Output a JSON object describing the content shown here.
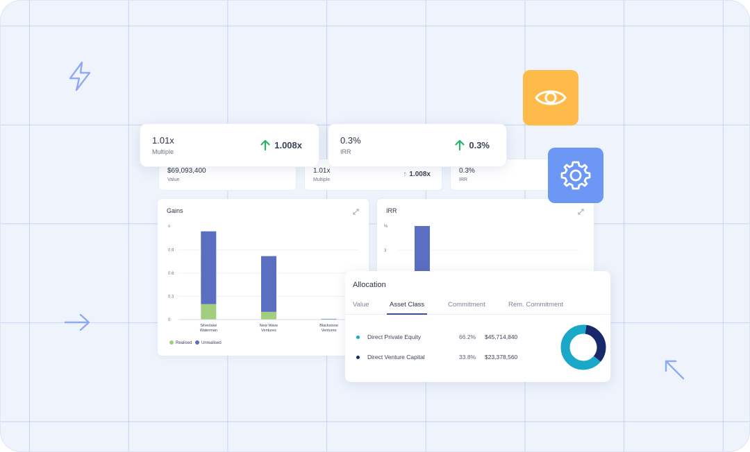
{
  "colors": {
    "background": "#eef3fc",
    "gain_up": "#2cb36b",
    "bar_unrealised": "#5b6fc2",
    "bar_realised": "#a1cf7e",
    "eye_tile": "#ffbb4a",
    "gear_tile": "#6d97f5",
    "donut_primary": "#1aa7c8",
    "donut_secondary": "#17296b"
  },
  "stat_cards": [
    {
      "value": "1.01x",
      "label": "Multiple",
      "delta": "1.008x",
      "icon": "arrow-up-icon"
    },
    {
      "value": "0.3%",
      "label": "IRR",
      "delta": "0.3%",
      "icon": "arrow-up-icon"
    }
  ],
  "dashboard": {
    "mini_cards": [
      {
        "value": "$69,093,400",
        "label": "Value",
        "delta": ""
      },
      {
        "value": "1.01x",
        "label": "Multiple",
        "delta": "1.008x"
      },
      {
        "value": "0.3%",
        "label": "IRR",
        "delta": ""
      }
    ],
    "gains_title": "Gains",
    "irr_title": "IRR",
    "legend": {
      "realised": "Realised",
      "unrealised": "Unrealised"
    }
  },
  "chart_data": [
    {
      "type": "bar",
      "title": "Gains",
      "ylabel": "x",
      "yticks": [
        "0",
        "0.3",
        "0.6",
        "0.9"
      ],
      "ylim": [
        0,
        1.2
      ],
      "categories": [
        "Silverlake Waterman",
        "New Wave Ventures",
        "Blackstone Ventures"
      ],
      "stacked": true,
      "series": [
        {
          "name": "Realised",
          "values": [
            0.2,
            0.1,
            0.0
          ]
        },
        {
          "name": "Unrealised",
          "values": [
            0.94,
            0.72,
            0.01
          ]
        }
      ],
      "legend": "bottom-left",
      "grid": true
    },
    {
      "type": "bar",
      "title": "IRR",
      "ylabel": "%",
      "yticks": [
        "3"
      ],
      "series": [
        {
          "name": "",
          "values": [
            4.2
          ]
        }
      ],
      "grid": true
    }
  ],
  "allocation": {
    "title": "Allocation",
    "tabs": [
      "Value",
      "Asset Class",
      "Commitment",
      "Rem. Commitment"
    ],
    "active_tab": "Asset Class",
    "rows": [
      {
        "name": "Direct Private Equity",
        "pct": "66.2%",
        "amount": "$45,714,840",
        "color": "#1aa7c8",
        "share": 66.2
      },
      {
        "name": "Direct Venture Capital",
        "pct": "33.8%",
        "amount": "$23,378,560",
        "color": "#17296b",
        "share": 33.8
      }
    ]
  },
  "icons": [
    "lightning-icon",
    "eye-icon",
    "gear-icon",
    "arrow-right-icon",
    "arrow-up-left-icon",
    "expand-icon"
  ]
}
